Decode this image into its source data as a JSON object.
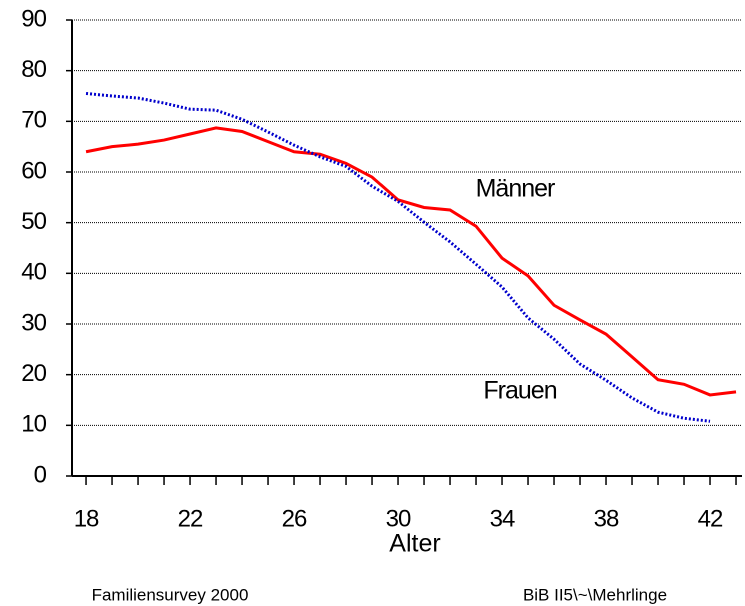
{
  "chart_data": {
    "type": "line",
    "x_label": "Alter",
    "x": [
      18,
      19,
      20,
      21,
      22,
      23,
      24,
      25,
      26,
      27,
      28,
      29,
      30,
      31,
      32,
      33,
      34,
      35,
      36,
      37,
      38,
      39,
      40,
      41,
      42,
      43
    ],
    "series": [
      {
        "name": "Männer",
        "color": "#ff0000",
        "style": "solid",
        "values": [
          64,
          65,
          65.5,
          66.3,
          67.5,
          68.7,
          68,
          66,
          64,
          63.5,
          61.7,
          59,
          54.5,
          53,
          52.5,
          49.3,
          43,
          39.5,
          33.7,
          30.8,
          28,
          23.5,
          19,
          18.1,
          16,
          16.6
        ]
      },
      {
        "name": "Frauen",
        "color": "#0000cc",
        "style": "dotted",
        "values": [
          75.5,
          75,
          74.6,
          73.6,
          72.4,
          72.2,
          70.4,
          67.9,
          65.3,
          63,
          61.1,
          57.2,
          54.2,
          50.1,
          46.2,
          41.8,
          37.3,
          31.2,
          27,
          22.1,
          18.9,
          15.4,
          12.6,
          11.4,
          10.8,
          null
        ]
      }
    ],
    "xlim": [
      17.46,
      43.23
    ],
    "xticks": [
      18,
      22,
      26,
      30,
      34,
      38,
      42
    ],
    "xminor_ticks": [
      19,
      20,
      21,
      23,
      24,
      25,
      27,
      28,
      29,
      31,
      32,
      33,
      35,
      36,
      37,
      39,
      40,
      41,
      43
    ],
    "ylim": [
      0,
      90
    ],
    "yticks": [
      0,
      10,
      20,
      30,
      40,
      50,
      60,
      70,
      80,
      90
    ],
    "grid": true,
    "footer_left": "Familiensurvey 2000",
    "footer_right": "BiB II5\\~\\Mehrlinge"
  }
}
